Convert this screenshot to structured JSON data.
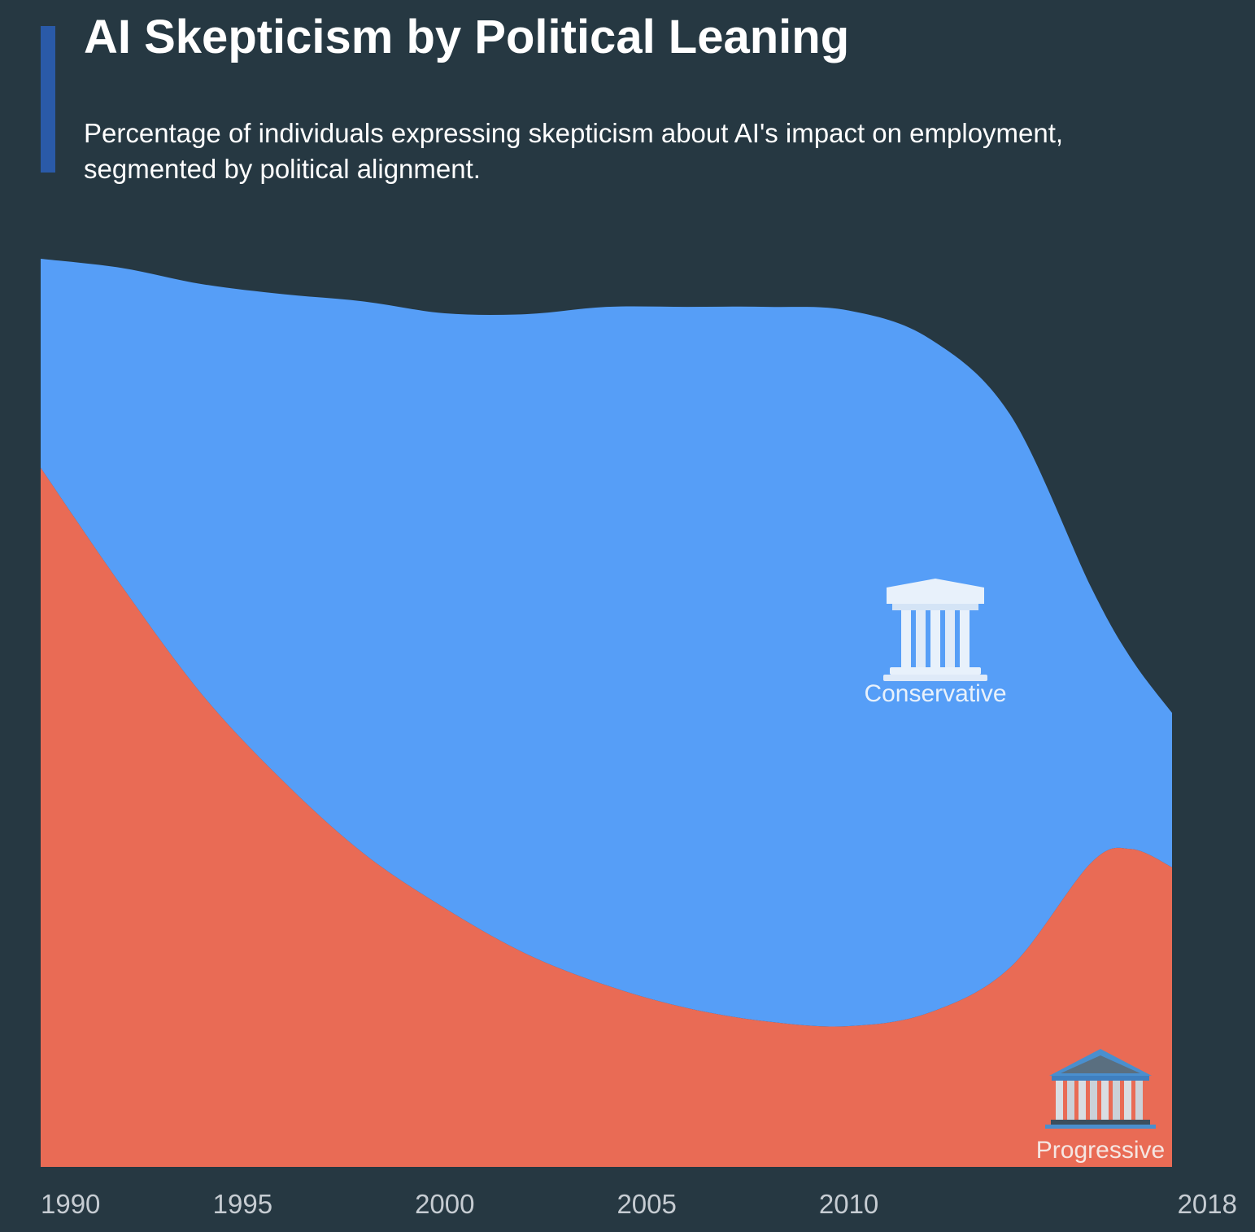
{
  "title": "AI Skepticism by Political Leaning",
  "subtitle": "Percentage of individuals expressing skepticism about AI's impact on employment, segmented by political alignment.",
  "colors": {
    "background": "#263842",
    "accent_bar": "#2a5aa8",
    "conservative": "#569ef7",
    "progressive": "#e96b55",
    "tick_text": "#c6ccd2",
    "conservative_label": "#e8f1fb",
    "progressive_label": "#f5e6e2"
  },
  "chart_data": {
    "type": "area",
    "stacked": true,
    "x": [
      1990,
      1992,
      1994,
      1996,
      1998,
      2000,
      2002,
      2004,
      2006,
      2008,
      2010,
      2012,
      2014,
      2016,
      2017,
      2018
    ],
    "x_ticks": [
      "1990",
      "1995",
      "2000",
      "2005",
      "2010",
      "2018"
    ],
    "y_axis_visible": false,
    "ylim": [
      0,
      100
    ],
    "grid": false,
    "series": [
      {
        "name": "Progressive",
        "icon": "progressive-building-icon",
        "values": [
          77,
          64,
          52,
          42.5,
          34.5,
          28.5,
          23.5,
          20,
          17.5,
          16,
          15.5,
          17,
          22,
          33.5,
          35,
          33
        ]
      },
      {
        "name": "Conservative",
        "icon": "conservative-building-icon",
        "values": [
          23,
          35,
          45.2,
          53.6,
          60.8,
          65.5,
          70.4,
          74.7,
          77.2,
          78.7,
          78.8,
          74.2,
          60.8,
          30.3,
          20.9,
          17
        ]
      }
    ]
  }
}
